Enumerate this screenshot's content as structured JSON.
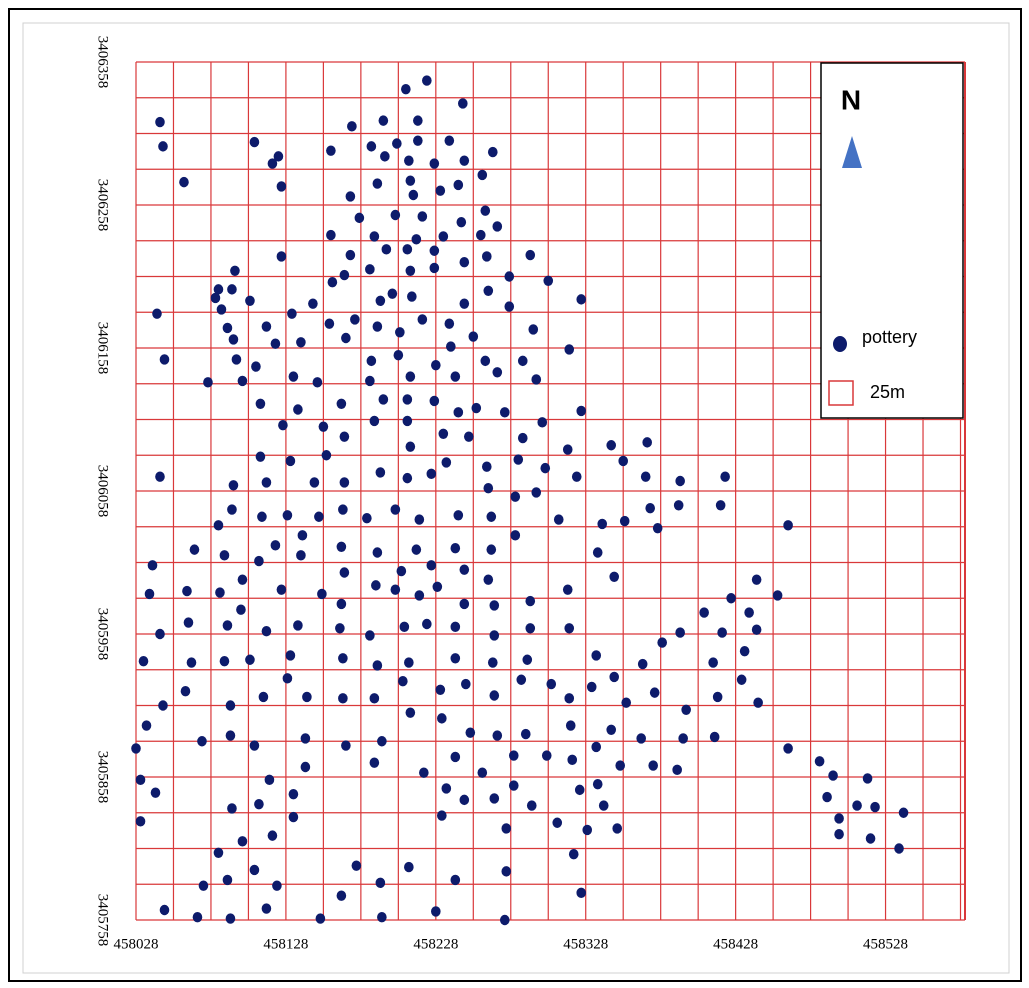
{
  "chart_data": {
    "type": "scatter",
    "north_label": "N",
    "grid": true,
    "grid_color": "#d9383a",
    "grid_label": "25m",
    "xlim": [
      458028,
      458581
    ],
    "ylim": [
      3405758,
      3406358
    ],
    "xticks": [
      458028,
      458128,
      458228,
      458328,
      458428,
      458528
    ],
    "yticks": [
      3405758,
      3405858,
      3405958,
      3406058,
      3406158,
      3406258,
      3406358
    ],
    "series": [
      {
        "name": "pottery",
        "color": "#0d1b6b",
        "x": [
          458208,
          458222,
          458044,
          458046,
          458246,
          458172,
          458193,
          458216,
          458107,
          458158,
          458185,
          458202,
          458237,
          458060,
          458119,
          458123,
          458194,
          458210,
          458216,
          458227,
          458247,
          458266,
          458125,
          458171,
          458189,
          458211,
          458213,
          458231,
          458243,
          458259,
          458158,
          458177,
          458187,
          458201,
          458215,
          458219,
          458233,
          458245,
          458261,
          458269,
          458258,
          458125,
          458094,
          458083,
          458081,
          458092,
          458085,
          458104,
          458115,
          458132,
          458146,
          458159,
          458171,
          458167,
          458184,
          458195,
          458209,
          458211,
          458227,
          458227,
          458247,
          458262,
          458277,
          458291,
          458303,
          458325,
          458042,
          458047,
          458076,
          458089,
          458093,
          458095,
          458099,
          458121,
          458108,
          458138,
          458133,
          458149,
          458157,
          458168,
          458174,
          458191,
          458199,
          458212,
          458189,
          458204,
          458219,
          458237,
          458247,
          458263,
          458277,
          458293,
          458185,
          458184,
          458203,
          458211,
          458228,
          458241,
          458261,
          458269,
          458238,
          458253,
          458286,
          458295,
          458317,
          458111,
          458136,
          458126,
          458165,
          458153,
          458193,
          458209,
          458227,
          458187,
          458209,
          458243,
          458255,
          458274,
          458299,
          458325,
          458131,
          458111,
          458155,
          458167,
          458191,
          458211,
          458233,
          458250,
          458286,
          458345,
          458369,
          458044,
          458093,
          458115,
          458147,
          458167,
          458209,
          458225,
          458235,
          458262,
          458283,
          458301,
          458316,
          458353,
          458368,
          458391,
          458421,
          458092,
          458112,
          458129,
          458150,
          458166,
          458182,
          458201,
          458217,
          458243,
          458263,
          458281,
          458265,
          458295,
          458310,
          458322,
          458339,
          458354,
          458371,
          458376,
          458390,
          458418,
          458463,
          458067,
          458083,
          458139,
          458165,
          458189,
          458215,
          458241,
          458281,
          458265,
          458336,
          458039,
          458087,
          458099,
          458110,
          458121,
          458138,
          458167,
          458188,
          458205,
          458225,
          458247,
          458263,
          458347,
          458442,
          458037,
          458062,
          458084,
          458098,
          458125,
          458152,
          458165,
          458201,
          458217,
          458229,
          458247,
          458267,
          458291,
          458316,
          458425,
          458456,
          458407,
          458437,
          458044,
          458063,
          458089,
          458115,
          458136,
          458164,
          458184,
          458207,
          458222,
          458241,
          458267,
          458291,
          458317,
          458391,
          458419,
          458442,
          458033,
          458065,
          458087,
          458104,
          458131,
          458166,
          458189,
          458210,
          458241,
          458266,
          458289,
          458335,
          458366,
          458379,
          458413,
          458434,
          458046,
          458061,
          458091,
          458113,
          458129,
          458142,
          458166,
          458187,
          458206,
          458231,
          458248,
          458267,
          458285,
          458305,
          458332,
          458347,
          458317,
          458355,
          458374,
          458395,
          458416,
          458432,
          458443,
          458035,
          458072,
          458091,
          458107,
          458141,
          458168,
          458192,
          458211,
          458232,
          458251,
          458269,
          458288,
          458318,
          458335,
          458345,
          458365,
          458393,
          458414,
          458028,
          458031,
          458041,
          458031,
          458117,
          458141,
          458187,
          458220,
          458241,
          458259,
          458280,
          458302,
          458319,
          458336,
          458351,
          458373,
          458389,
          458463,
          458484,
          458493,
          458516,
          458489,
          458509,
          458521,
          458540,
          458092,
          458110,
          458133,
          458133,
          458235,
          458247,
          458267,
          458280,
          458292,
          458324,
          458340,
          458349,
          458497,
          458497,
          458518,
          458537,
          458099,
          458119,
          458232,
          458275,
          458309,
          458329,
          458083,
          458107,
          458089,
          458122,
          458073,
          458175,
          458210,
          458191,
          458241,
          458275,
          458320,
          458165,
          458325,
          458047,
          458069,
          458091,
          458115,
          458151,
          458192,
          458228,
          458274
        ],
        "y": [
          3406339,
          3406345,
          3406316,
          3406299,
          3406329,
          3406313,
          3406317,
          3406317,
          3406302,
          3406296,
          3406299,
          3406301,
          3406303,
          3406274,
          3406287,
          3406292,
          3406292,
          3406289,
          3406303,
          3406287,
          3406289,
          3406295,
          3406271,
          3406264,
          3406273,
          3406275,
          3406265,
          3406268,
          3406272,
          3406279,
          3406237,
          3406249,
          3406236,
          3406251,
          3406234,
          3406250,
          3406236,
          3406246,
          3406254,
          3406243,
          3406237,
          3406222,
          3406212,
          3406199,
          3406193,
          3406199,
          3406185,
          3406191,
          3406173,
          3406182,
          3406189,
          3406204,
          3406223,
          3406209,
          3406213,
          3406227,
          3406227,
          3406212,
          3406226,
          3406214,
          3406218,
          3406222,
          3406208,
          3406223,
          3406205,
          3406192,
          3406182,
          3406150,
          3406134,
          3406172,
          3406164,
          3406150,
          3406135,
          3406161,
          3406145,
          3406162,
          3406138,
          3406134,
          3406175,
          3406165,
          3406178,
          3406191,
          3406196,
          3406194,
          3406173,
          3406169,
          3406178,
          3406175,
          3406189,
          3406198,
          3406187,
          3406171,
          3406149,
          3406135,
          3406153,
          3406138,
          3406146,
          3406138,
          3406149,
          3406141,
          3406159,
          3406166,
          3406149,
          3406136,
          3406157,
          3406119,
          3406115,
          3406104,
          3406119,
          3406103,
          3406122,
          3406122,
          3406121,
          3406107,
          3406107,
          3406113,
          3406116,
          3406113,
          3406106,
          3406114,
          3406079,
          3406082,
          3406083,
          3406096,
          3406071,
          3406089,
          3406098,
          3406096,
          3406095,
          3406090,
          3406092,
          3406068,
          3406062,
          3406064,
          3406064,
          3406064,
          3406067,
          3406070,
          3406078,
          3406075,
          3406080,
          3406074,
          3406087,
          3406079,
          3406068,
          3406065,
          3406068,
          3406045,
          3406040,
          3406041,
          3406040,
          3406045,
          3406039,
          3406045,
          3406038,
          3406041,
          3406060,
          3406054,
          3406040,
          3406057,
          3406038,
          3406068,
          3406035,
          3406037,
          3406046,
          3406032,
          3406048,
          3406048,
          3406034,
          3406017,
          3406034,
          3406027,
          3406019,
          3406015,
          3406017,
          3406018,
          3406027,
          3406017,
          3406015,
          3406006,
          3406013,
          3405996,
          3406009,
          3406020,
          3406013,
          3406001,
          3405992,
          3406002,
          3406006,
          3406003,
          3405996,
          3405998,
          3405996,
          3405986,
          3405988,
          3405987,
          3405975,
          3405989,
          3405986,
          3405979,
          3405989,
          3405985,
          3405991,
          3405979,
          3405978,
          3405981,
          3405989,
          3405983,
          3405985,
          3405973,
          3405973,
          3405958,
          3405966,
          3405964,
          3405960,
          3405964,
          3405962,
          3405957,
          3405963,
          3405965,
          3405963,
          3405957,
          3405962,
          3405962,
          3405959,
          3405959,
          3405961,
          3405939,
          3405938,
          3405939,
          3405940,
          3405943,
          3405941,
          3405936,
          3405938,
          3405941,
          3405938,
          3405940,
          3405943,
          3405937,
          3405952,
          3405938,
          3405946,
          3405908,
          3405918,
          3405908,
          3405914,
          3405927,
          3405914,
          3405913,
          3405913,
          3405925,
          3405919,
          3405923,
          3405915,
          3405926,
          3405923,
          3405921,
          3405928,
          3405913,
          3405910,
          3405917,
          3405905,
          3405914,
          3405926,
          3405910,
          3405894,
          3405883,
          3405887,
          3405880,
          3405885,
          3405880,
          3405883,
          3405903,
          3405899,
          3405889,
          3405887,
          3405888,
          3405894,
          3405879,
          3405891,
          3405885,
          3405885,
          3405886,
          3405878,
          3405856,
          3405847,
          3405827,
          3405856,
          3405865,
          3405868,
          3405861,
          3405872,
          3405861,
          3405873,
          3405873,
          3405870,
          3405853,
          3405866,
          3405866,
          3405863,
          3405878,
          3405869,
          3405859,
          3405857,
          3405844,
          3405838,
          3405837,
          3405833,
          3405836,
          3405839,
          3405846,
          3405830,
          3405850,
          3405842,
          3405843,
          3405852,
          3405838,
          3405849,
          3405838,
          3405822,
          3405829,
          3405818,
          3405815,
          3405808,
          3405813,
          3405817,
          3405831,
          3405822,
          3405826,
          3405821,
          3405805,
          3405793,
          3405786,
          3405782,
          3405782,
          3405796,
          3405795,
          3405784,
          3405786,
          3405792,
          3405804,
          3405775,
          3405777,
          3405765,
          3405760,
          3405759,
          3405766,
          3405759,
          3405760,
          3405764,
          3405758
        ]
      }
    ]
  }
}
